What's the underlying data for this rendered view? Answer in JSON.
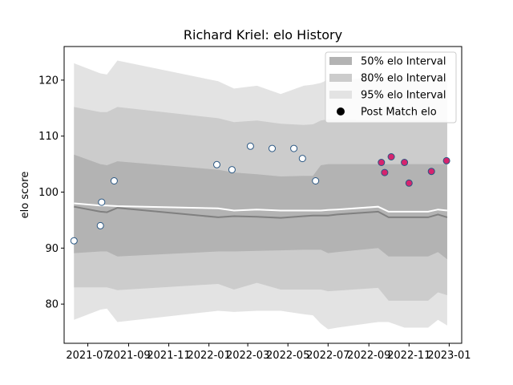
{
  "chart_data": {
    "type": "line",
    "title": "Richard Kriel: elo History",
    "xlabel": "",
    "ylabel": "elo score",
    "xlim": [
      "2021-05-26",
      "2023-01-20"
    ],
    "ylim": [
      73,
      126
    ],
    "x_ticks": [
      "2021-07",
      "2021-09",
      "2021-11",
      "2022-01",
      "2022-03",
      "2022-05",
      "2022-07",
      "2022-09",
      "2022-11",
      "2023-01"
    ],
    "y_ticks": [
      80,
      90,
      100,
      110,
      120
    ],
    "grid": false,
    "legend_position": "top-right",
    "legend": [
      {
        "label": "50% elo Interval",
        "kind": "patch",
        "color": "#b3b3b3"
      },
      {
        "label": "80% elo Interval",
        "kind": "patch",
        "color": "#cccccc"
      },
      {
        "label": "95% elo Interval",
        "kind": "patch",
        "color": "#e3e3e3"
      },
      {
        "label": "Post Match elo",
        "kind": "marker",
        "color": "#000000"
      }
    ],
    "dates": [
      "2021-06-10",
      "2021-07-20",
      "2021-07-30",
      "2021-08-15",
      "2022-01-15",
      "2022-02-08",
      "2022-03-15",
      "2022-04-20",
      "2022-05-25",
      "2022-06-08",
      "2022-06-20",
      "2022-07-01",
      "2022-07-15",
      "2022-09-15",
      "2022-10-01",
      "2022-10-25",
      "2022-11-15",
      "2022-11-30",
      "2022-12-15",
      "2022-12-29"
    ],
    "bands": {
      "p95": {
        "upper": [
          123,
          121.2,
          121,
          123.5,
          119.8,
          118.5,
          119,
          117.5,
          119,
          119.2,
          119.5,
          120.1,
          120,
          120.5,
          120.5,
          120.5,
          120.5,
          120.5,
          120.3,
          120.5
        ],
        "lower": [
          77.2,
          79,
          79.2,
          76.8,
          78.8,
          78.6,
          78.8,
          78.8,
          78.2,
          78,
          76.5,
          75.5,
          75.8,
          76.8,
          76.8,
          75.8,
          75.8,
          75.8,
          77.2,
          76.2
        ],
        "color": "#e3e3e3"
      },
      "p80": {
        "upper": [
          115.2,
          114.3,
          114.3,
          115.2,
          113.2,
          112.5,
          112.8,
          112.2,
          112,
          112.1,
          112.8,
          113,
          113,
          112.8,
          112.8,
          112.8,
          112.8,
          112.8,
          112.8,
          112.8
        ],
        "lower": [
          83,
          83,
          83,
          82.5,
          83.6,
          82.6,
          83.8,
          82.6,
          82.6,
          82.6,
          82.6,
          82.3,
          82.4,
          82.9,
          80.6,
          80.6,
          80.6,
          80.6,
          82.1,
          81.6
        ],
        "color": "#cccccc"
      },
      "p50": {
        "upper": [
          106.7,
          105,
          104.8,
          105.5,
          104,
          103.5,
          103.2,
          102.8,
          102.9,
          102.9,
          104.8,
          105,
          105,
          105,
          105,
          105,
          105,
          105,
          105,
          105
        ],
        "lower": [
          89.1,
          89.4,
          89.4,
          88.5,
          89.4,
          89.4,
          89.5,
          89.6,
          89.7,
          89.7,
          89.7,
          89.1,
          89.3,
          90,
          88.5,
          88.5,
          88.5,
          88.5,
          89.3,
          88
        ],
        "color": "#b3b3b3"
      }
    },
    "series": [
      {
        "name": "",
        "values": [
          97.4,
          96.5,
          96.4,
          97.2,
          95.5,
          95.7,
          95.6,
          95.4,
          95.7,
          95.8,
          95.8,
          95.8,
          96,
          96.5,
          95.5,
          95.5,
          95.5,
          95.5,
          96,
          95.5
        ],
        "color": "#808080"
      },
      {
        "name": "",
        "values": [
          98,
          97.6,
          97.6,
          97.5,
          97.1,
          96.7,
          96.9,
          96.7,
          96.7,
          96.7,
          96.7,
          96.8,
          96.9,
          97.4,
          96.5,
          96.5,
          96.5,
          96.5,
          96.9,
          96.7
        ],
        "color": "#ffffff"
      }
    ],
    "points": [
      {
        "date": "2021-06-10",
        "elo": 91.3,
        "fill": "#ffffff"
      },
      {
        "date": "2021-07-20",
        "elo": 94,
        "fill": "#ffffff"
      },
      {
        "date": "2021-07-22",
        "elo": 98.2,
        "fill": "#ffffff"
      },
      {
        "date": "2021-08-10",
        "elo": 102,
        "fill": "#ffffff"
      },
      {
        "date": "2022-01-13",
        "elo": 104.9,
        "fill": "#ffffff"
      },
      {
        "date": "2022-02-05",
        "elo": 104,
        "fill": "#ffffff"
      },
      {
        "date": "2022-03-05",
        "elo": 108.2,
        "fill": "#ffffff"
      },
      {
        "date": "2022-04-07",
        "elo": 107.8,
        "fill": "#ffffff"
      },
      {
        "date": "2022-05-10",
        "elo": 107.8,
        "fill": "#ffffff"
      },
      {
        "date": "2022-05-23",
        "elo": 106,
        "fill": "#ffffff"
      },
      {
        "date": "2022-06-12",
        "elo": 102,
        "fill": "#ffffff"
      },
      {
        "date": "2022-09-20",
        "elo": 105.3,
        "fill": "#d6246e"
      },
      {
        "date": "2022-09-25",
        "elo": 103.5,
        "fill": "#d6246e"
      },
      {
        "date": "2022-10-05",
        "elo": 106.3,
        "fill": "#d6246e"
      },
      {
        "date": "2022-10-25",
        "elo": 105.3,
        "fill": "#d6246e"
      },
      {
        "date": "2022-11-01",
        "elo": 101.6,
        "fill": "#d6246e"
      },
      {
        "date": "2022-12-05",
        "elo": 103.7,
        "fill": "#d6246e"
      },
      {
        "date": "2022-12-28",
        "elo": 105.6,
        "fill": "#d6246e"
      }
    ],
    "marker_edge_color": "#2a5783"
  }
}
